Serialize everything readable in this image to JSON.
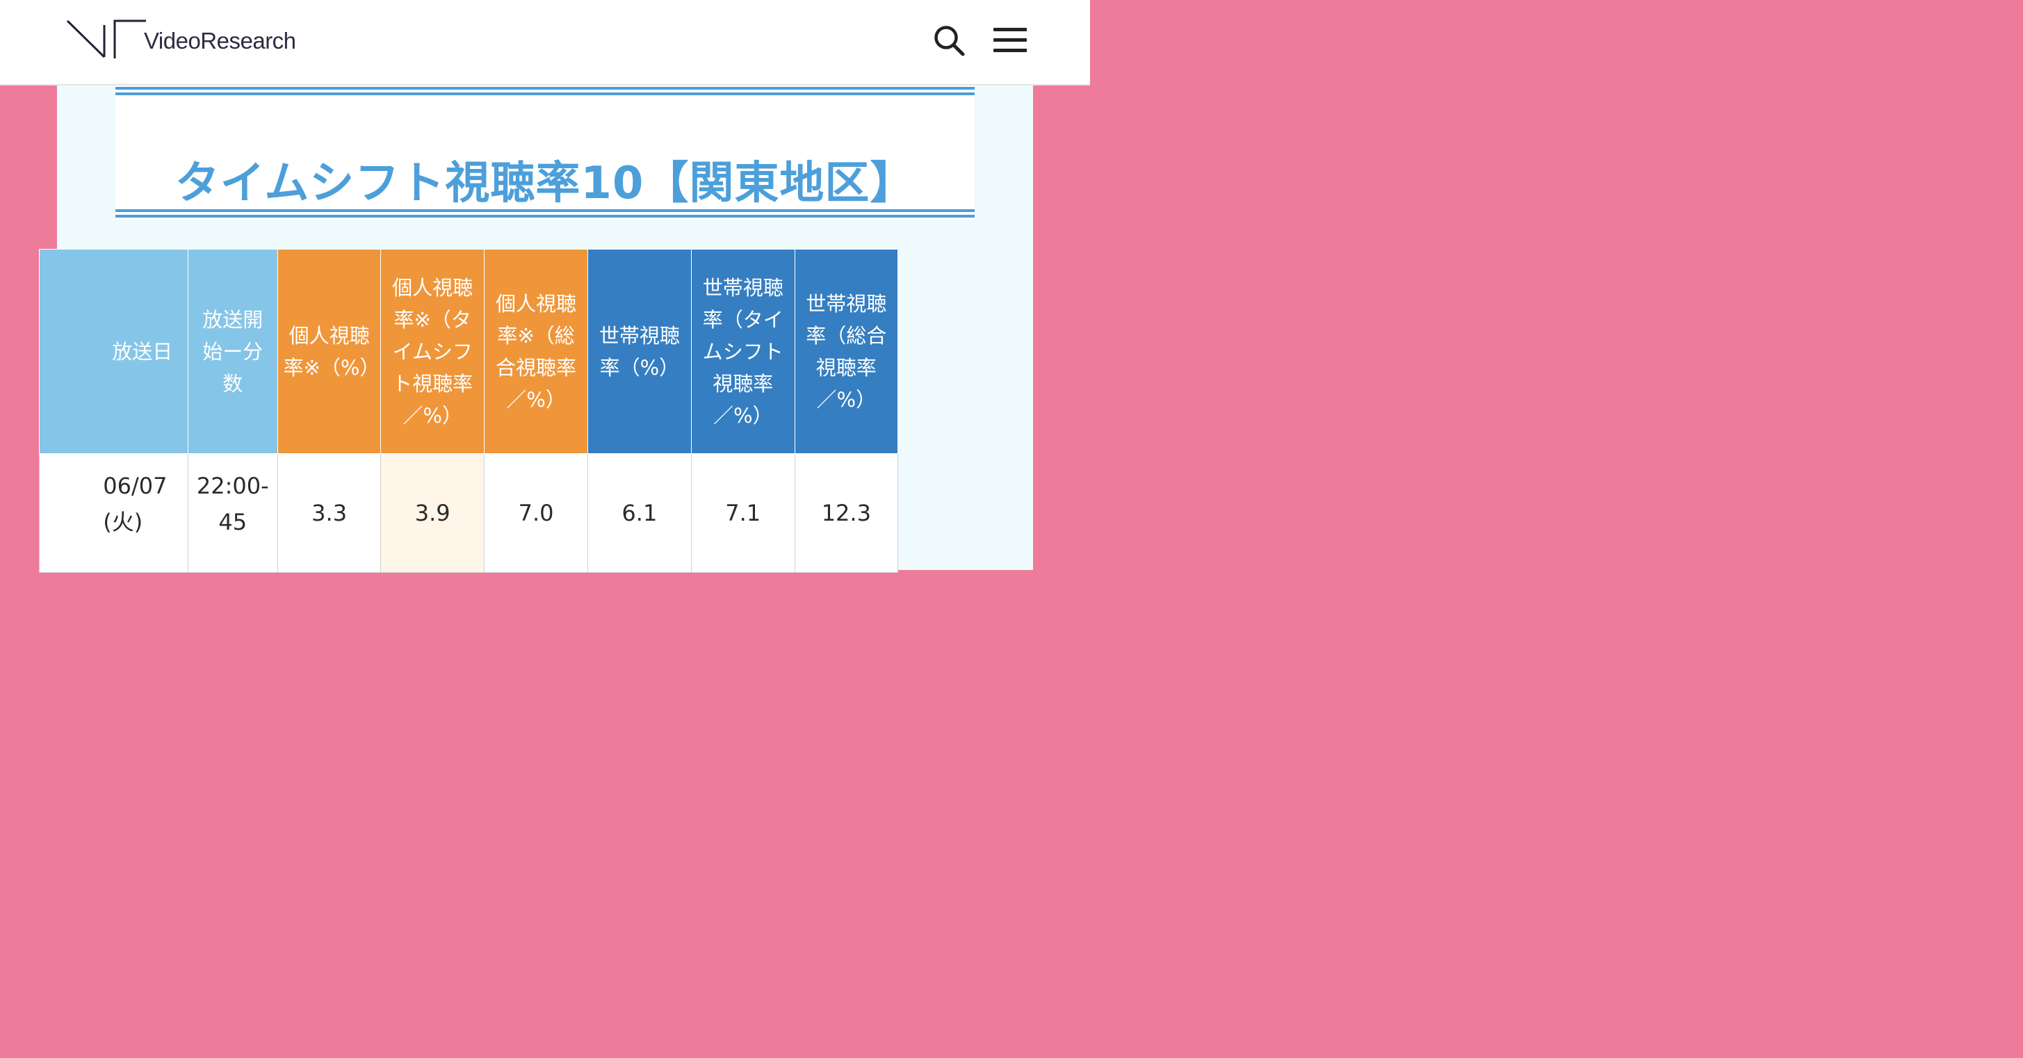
{
  "header": {
    "brand": "VideoResearch",
    "search_icon": "search-icon",
    "menu_icon": "hamburger-menu-icon"
  },
  "page": {
    "title": "タイムシフト視聴率10【関東地区】"
  },
  "colors": {
    "background_pink": "#ee7b9a",
    "panel": "#eefafc",
    "title_blue": "#4d9fda",
    "header_light_blue": "#85c5e8",
    "header_orange": "#ef963a",
    "header_dark_blue": "#357ec1",
    "highlight_cell": "#fff5e9"
  },
  "table": {
    "headers": [
      "放送日",
      "放送開始ー分数",
      "個人視聴率※（%）",
      "個人視聴率※（タイムシフト視聴率／%）",
      "個人視聴率※（総合視聴率／%）",
      "世帯視聴率（%）",
      "世帯視聴率（タイムシフト視聴率／%）",
      "世帯視聴率（総合視聴率／%）"
    ],
    "rows": [
      {
        "date": "06/07(火)",
        "start_duration": "22:00-45",
        "personal": "3.3",
        "personal_timeshift": "3.9",
        "personal_total": "7.0",
        "household": "6.1",
        "household_timeshift": "7.1",
        "household_total": "12.3"
      }
    ]
  }
}
